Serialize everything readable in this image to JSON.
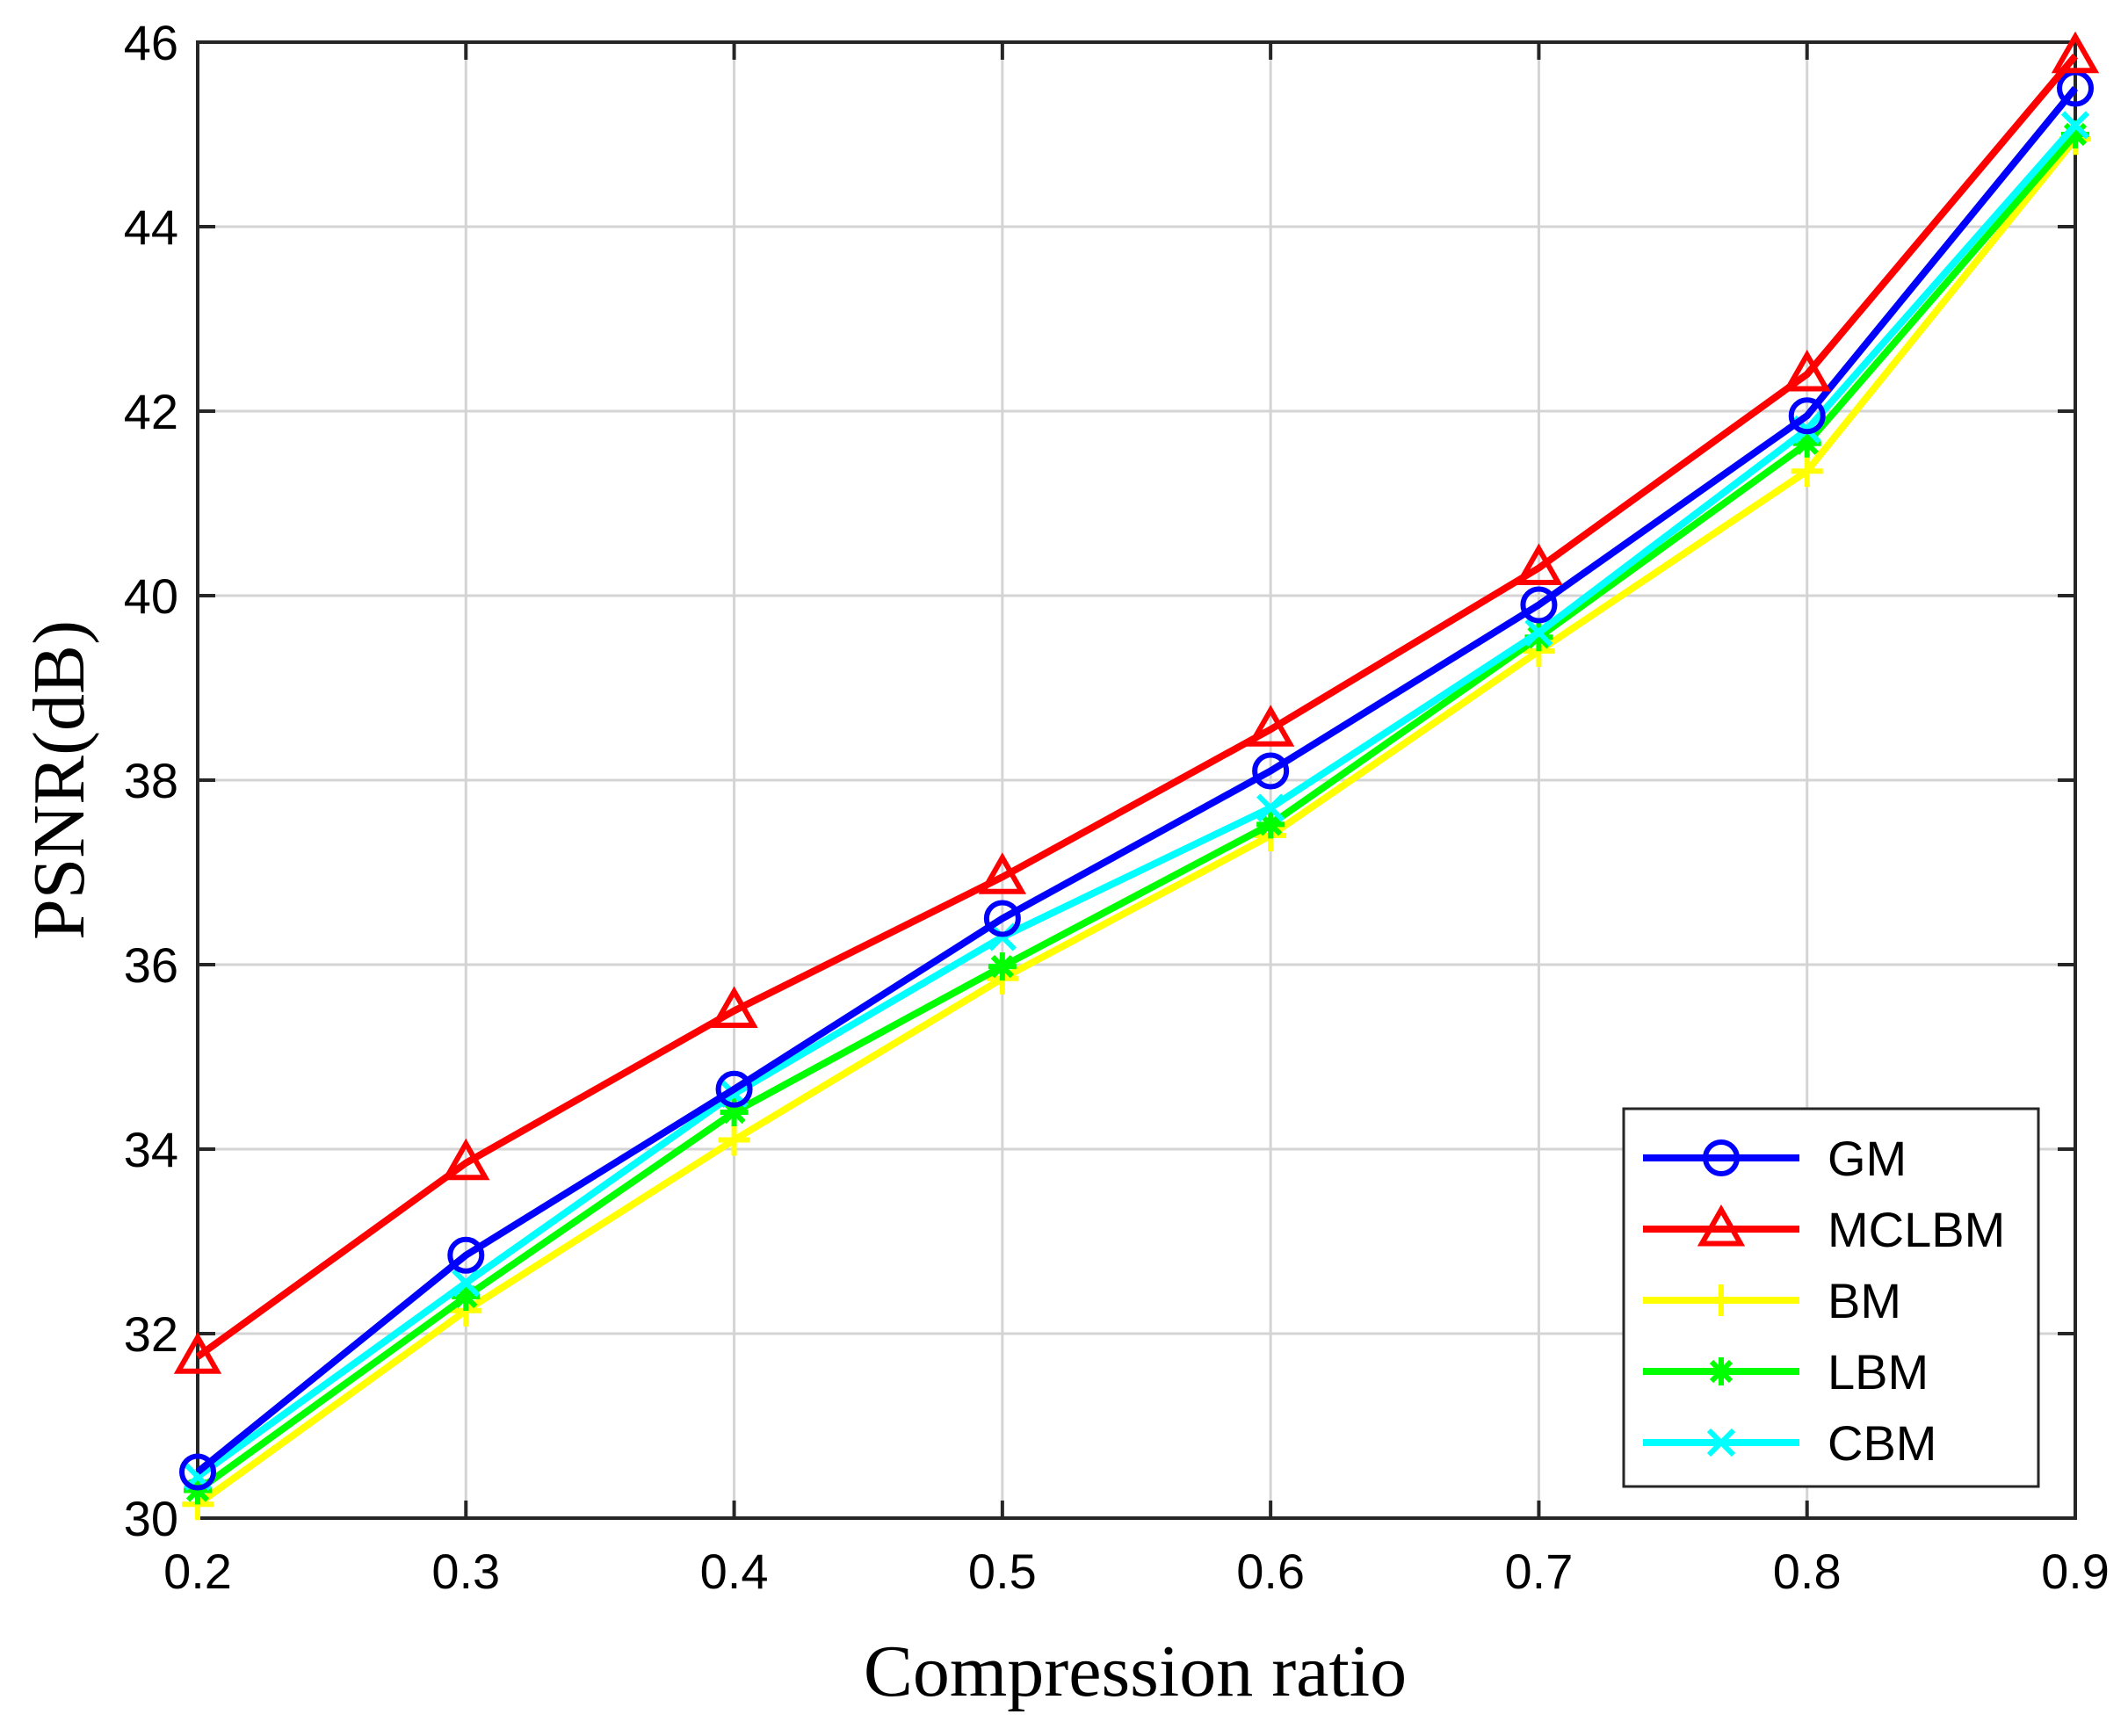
{
  "chart_data": {
    "type": "line",
    "title": "",
    "xlabel": "Compression ratio",
    "ylabel": "PSNR(dB)",
    "xlim": [
      0.2,
      0.9
    ],
    "ylim": [
      30,
      46
    ],
    "x": [
      0.2,
      0.3,
      0.4,
      0.5,
      0.6,
      0.7,
      0.8,
      0.9
    ],
    "xticks": [
      "0.2",
      "0.3",
      "0.4",
      "0.5",
      "0.6",
      "0.7",
      "0.8",
      "0.9"
    ],
    "yticks": [
      "30",
      "32",
      "34",
      "36",
      "38",
      "40",
      "42",
      "44",
      "46"
    ],
    "grid": true,
    "legend_position": "bottom-right",
    "series": [
      {
        "name": "GM",
        "color": "#0000ff",
        "marker": "circle",
        "values": [
          30.5,
          32.85,
          34.65,
          36.5,
          38.1,
          39.9,
          41.95,
          45.5
        ]
      },
      {
        "name": "MCLBM",
        "color": "#ff0000",
        "marker": "triangle",
        "values": [
          31.75,
          33.85,
          35.5,
          36.95,
          38.55,
          40.3,
          42.4,
          45.85
        ]
      },
      {
        "name": "BM",
        "color": "#ffff00",
        "marker": "plus",
        "values": [
          30.15,
          32.25,
          34.1,
          35.85,
          37.4,
          39.4,
          41.35,
          44.95
        ]
      },
      {
        "name": "LBM",
        "color": "#00ff00",
        "marker": "asterisk",
        "values": [
          30.3,
          32.4,
          34.4,
          35.98,
          37.52,
          39.55,
          41.65,
          45.0
        ]
      },
      {
        "name": "CBM",
        "color": "#00ffff",
        "marker": "x",
        "values": [
          30.45,
          32.55,
          34.6,
          36.3,
          37.7,
          39.6,
          41.8,
          45.1
        ]
      }
    ]
  }
}
